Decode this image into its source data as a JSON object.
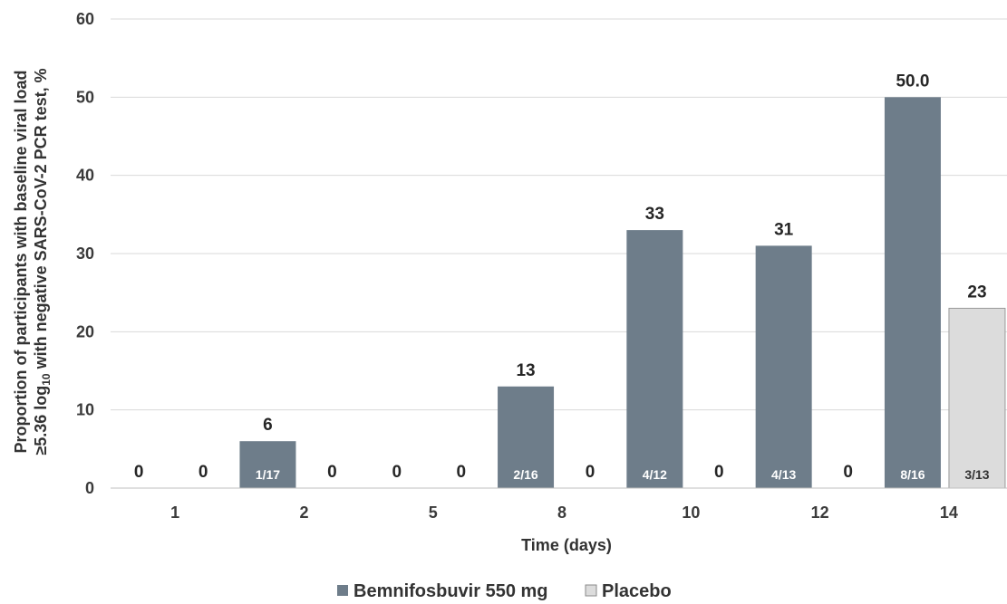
{
  "chart_data": {
    "type": "bar",
    "categories": [
      "1",
      "2",
      "5",
      "8",
      "10",
      "12",
      "14"
    ],
    "xlabel": "Time (days)",
    "ylabel_line1": "Proportion of participants with baseline viral load",
    "ylabel_line2_prefix": "≥5.36 log",
    "ylabel_line2_sub": "10",
    "ylabel_line2_suffix": " with negative SARS-CoV-2 PCR test, %",
    "ylim": [
      0,
      60
    ],
    "yticks": [
      0,
      10,
      20,
      30,
      40,
      50,
      60
    ],
    "grid": true,
    "legend_position": "bottom",
    "series": [
      {
        "name": "Bemnifosbuvir 550 mg",
        "color": "#6e7d8a",
        "values": [
          0,
          6,
          0,
          13,
          33,
          31,
          50
        ],
        "data_labels": [
          "0",
          "6",
          "0",
          "13",
          "33",
          "31",
          "50.0"
        ],
        "fractions": [
          "",
          "1/17",
          "",
          "2/16",
          "4/12",
          "4/13",
          "8/16"
        ]
      },
      {
        "name": "Placebo",
        "color": "#dcdcdc",
        "values": [
          0,
          0,
          0,
          0,
          0,
          0,
          23
        ],
        "data_labels": [
          "0",
          "0",
          "0",
          "0",
          "0",
          "0",
          "23"
        ],
        "fractions": [
          "",
          "",
          "",
          "",
          "",
          "",
          "3/13"
        ]
      }
    ]
  }
}
